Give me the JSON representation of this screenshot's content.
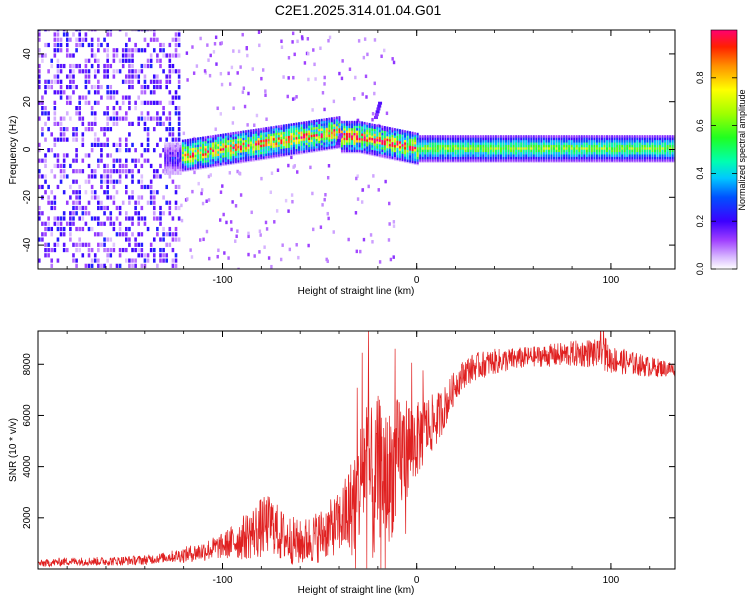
{
  "title": "C2E1.2025.314.01.04.G01",
  "colors": {
    "axis": "#000000",
    "snr_line": "#e02020",
    "background": "#ffffff"
  },
  "chart_data": [
    {
      "type": "heatmap",
      "name": "spectrogram",
      "xlabel": "Height of straight line (km)",
      "ylabel": "Frequency (Hz)",
      "xlim": [
        -195,
        133
      ],
      "ylim": [
        -50,
        50
      ],
      "xticks": [
        -100,
        0,
        100
      ],
      "xtick_labels": [
        "-100",
        "0",
        "100"
      ],
      "yticks": [
        -40,
        -20,
        0,
        20,
        40
      ],
      "ytick_labels": [
        "-40",
        "-20",
        "0",
        "20",
        "40"
      ],
      "colorbar": {
        "label": "Normalized spectral amplitude",
        "range": [
          0,
          1
        ],
        "ticks": [
          0.0,
          0.2,
          0.4,
          0.6,
          0.8
        ],
        "tick_labels": [
          "0.0",
          "0.2",
          "0.4",
          "0.6",
          "0.8"
        ]
      },
      "regions": [
        {
          "x_range": [
            -195,
            -122
          ],
          "description_values": {
            "amplitude": 0.12,
            "freq_spread_hz": 50
          }
        },
        {
          "x_range": [
            -122,
            0
          ],
          "description_values": {
            "amplitude": 0.45,
            "center_freq_hz": 3,
            "band_hz": 6
          }
        },
        {
          "x_range": [
            0,
            133
          ],
          "description_values": {
            "amplitude": 0.4,
            "center_freq_hz": 0,
            "band_hz": 5
          }
        }
      ],
      "annotations": [
        {
          "x": -42,
          "y_range": [
            2,
            8
          ]
        },
        {
          "x": -22,
          "y_range": [
            14,
            20
          ]
        }
      ]
    },
    {
      "type": "line",
      "name": "snr",
      "xlabel": "Height of straight line (km)",
      "ylabel": "SNR (10 * v/v)",
      "xlim": [
        -195,
        133
      ],
      "ylim": [
        0,
        9300
      ],
      "xticks": [
        -100,
        0,
        100
      ],
      "xtick_labels": [
        "-100",
        "0",
        "100"
      ],
      "yticks": [
        2000,
        4000,
        6000,
        8000
      ],
      "ytick_labels": [
        "2000",
        "4000",
        "6000",
        "8000"
      ],
      "series": [
        {
          "name": "SNR",
          "x": [
            -195,
            -180,
            -160,
            -140,
            -130,
            -120,
            -110,
            -100,
            -90,
            -80,
            -75,
            -70,
            -60,
            -50,
            -40,
            -35,
            -30,
            -26,
            -22,
            -20,
            -15,
            -10,
            -5,
            0,
            5,
            10,
            15,
            20,
            25,
            30,
            40,
            50,
            60,
            70,
            80,
            90,
            95,
            100,
            110,
            120,
            133
          ],
          "y": [
            200,
            300,
            300,
            350,
            450,
            550,
            700,
            900,
            1200,
            1600,
            1800,
            1300,
            1000,
            1300,
            1800,
            2200,
            3000,
            4500,
            2800,
            4000,
            3500,
            4200,
            4800,
            5000,
            5500,
            5800,
            6400,
            7200,
            7700,
            7900,
            8100,
            8200,
            8300,
            8350,
            8400,
            8450,
            8300,
            8200,
            8050,
            7900,
            7800
          ]
        }
      ],
      "noise_amplitude": [
        [
          -195,
          150
        ],
        [
          -130,
          200
        ],
        [
          -100,
          500
        ],
        [
          -80,
          1200
        ],
        [
          -60,
          900
        ],
        [
          -40,
          1200
        ],
        [
          -25,
          3000
        ],
        [
          -10,
          2500
        ],
        [
          0,
          1500
        ],
        [
          20,
          600
        ],
        [
          60,
          400
        ],
        [
          95,
          600
        ],
        [
          133,
          300
        ]
      ]
    }
  ]
}
